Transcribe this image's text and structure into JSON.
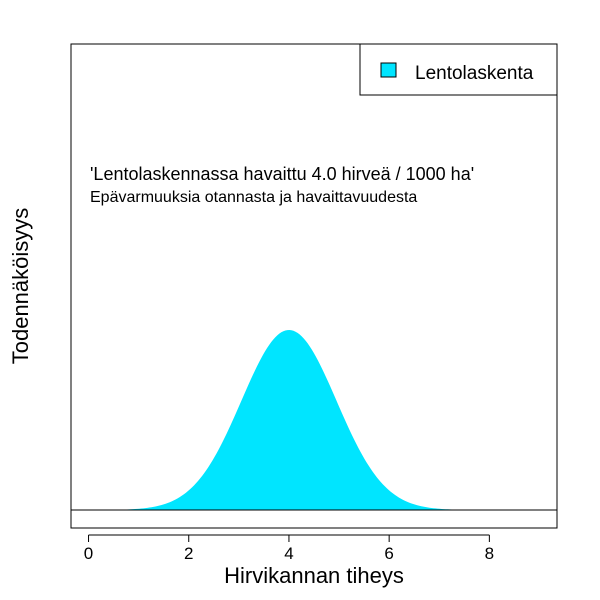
{
  "chart_data": {
    "type": "area",
    "xlabel": "Hirvikannan tiheys",
    "ylabel": "Todennäköisyys",
    "xlim": [
      -0.35,
      9.35
    ],
    "x_ticks": [
      0,
      2,
      4,
      6,
      8
    ],
    "x_tick_labels": [
      "0",
      "2",
      "4",
      "6",
      "8"
    ],
    "legend": {
      "position": "top-right",
      "entries": [
        {
          "label": "Lentolaskenta",
          "color": "#00E5FF"
        }
      ]
    },
    "annotations": [
      "'Lentolaskennassa havaittu 4.0 hirveä / 1000 ha'",
      "Epävarmuuksia otannasta ja havaittavuudesta"
    ],
    "series": [
      {
        "name": "Lentolaskenta",
        "color": "#00E5FF",
        "distribution": "normal",
        "mean": 4.0,
        "sd": 0.95,
        "x_range": [
          0,
          8.1
        ]
      }
    ],
    "grid": false
  }
}
